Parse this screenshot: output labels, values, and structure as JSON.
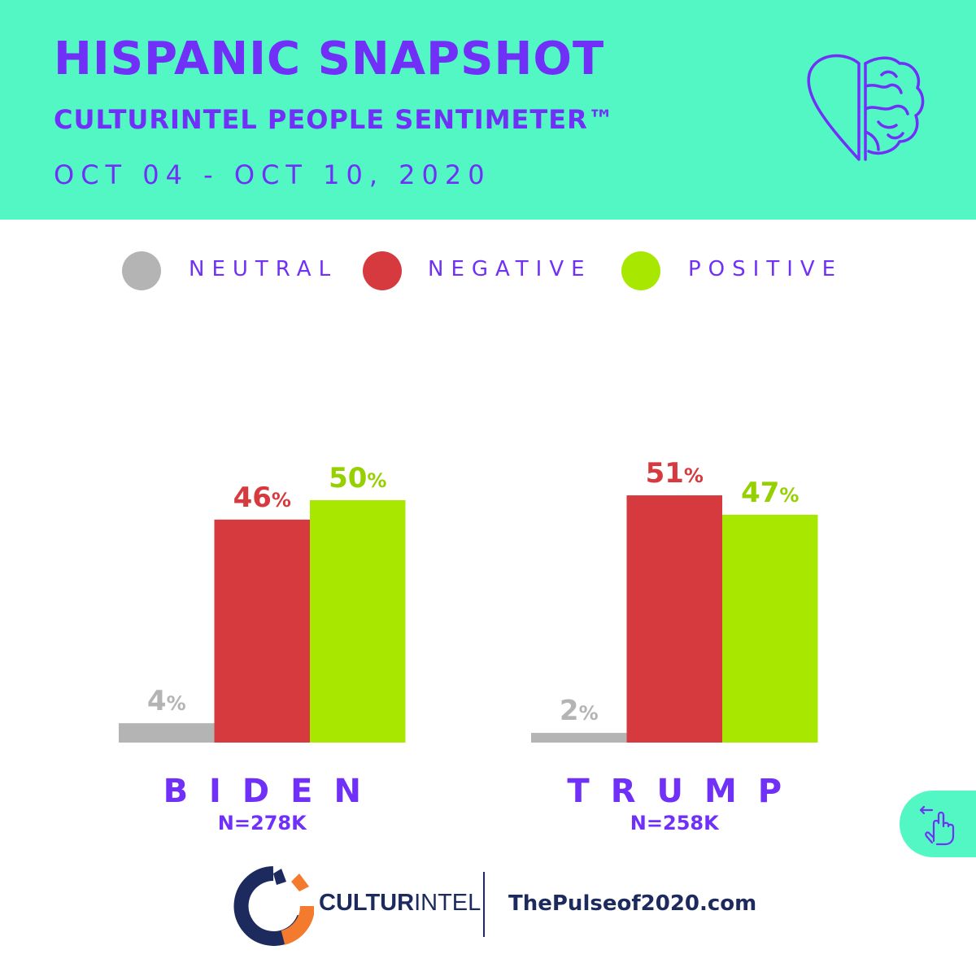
{
  "header": {
    "title": "HISPANIC SNAPSHOT",
    "subtitle": "CULTURINTEL PEOPLE SENTIMETER™",
    "dates": "OCT 04 - OCT 10, 2020",
    "icon": "heart-brain-icon"
  },
  "colors": {
    "header_bg": "#52f7c3",
    "accent": "#7030f8",
    "neutral": "#b4b4b4",
    "negative": "#d63a3f",
    "positive": "#a8e800",
    "positive_text": "#96d000",
    "navy": "#1d2a5e",
    "orange": "#f47a2e"
  },
  "chart_data": {
    "type": "bar",
    "title": "HISPANIC SNAPSHOT",
    "legend": [
      "NEUTRAL",
      "NEGATIVE",
      "POSITIVE"
    ],
    "legend_position": "top",
    "categories": [
      "BIDEN",
      "TRUMP"
    ],
    "sample_sizes": [
      "N=278K",
      "N=258K"
    ],
    "unit": "%",
    "series": [
      {
        "name": "NEUTRAL",
        "values": [
          4,
          2
        ]
      },
      {
        "name": "NEGATIVE",
        "values": [
          46,
          51
        ]
      },
      {
        "name": "POSITIVE",
        "values": [
          50,
          47
        ]
      }
    ],
    "ylim": [
      0,
      100
    ],
    "grid": false
  },
  "ui": {
    "swipe_icon": "swipe-hand-icon"
  },
  "footer": {
    "logo_bold": "CULTUR",
    "logo_light": "INTEL",
    "website": "ThePulseof2020.com"
  }
}
